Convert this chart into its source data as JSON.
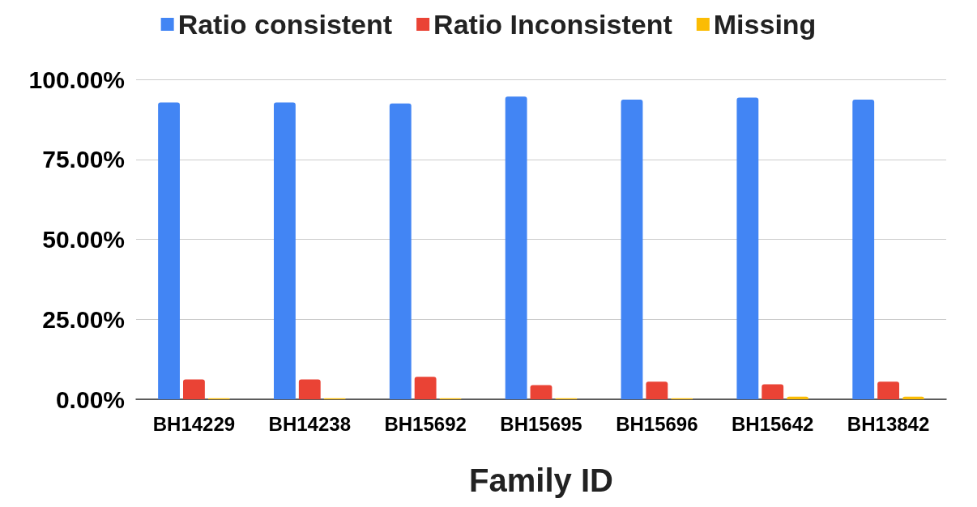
{
  "chart_data": {
    "type": "bar",
    "xlabel": "Family ID",
    "categories": [
      "BH14229",
      "BH14238",
      "BH15692",
      "BH15695",
      "BH15696",
      "BH15642",
      "BH13842"
    ],
    "series": [
      {
        "name": "Ratio consistent",
        "color": "#4285f4",
        "values": [
          92.8,
          92.8,
          92.5,
          94.6,
          93.7,
          94.3,
          93.7
        ]
      },
      {
        "name": "Ratio Inconsistent",
        "color": "#ea4335",
        "values": [
          6.2,
          6.2,
          7.0,
          4.4,
          5.5,
          4.7,
          5.5
        ]
      },
      {
        "name": "Missing",
        "color": "#fbbc04",
        "values": [
          0.3,
          0.3,
          0.3,
          0.3,
          0.3,
          0.8,
          0.8
        ]
      }
    ],
    "ylim": [
      0,
      100
    ],
    "yticks": [
      {
        "value": 0,
        "label": "0.00%"
      },
      {
        "value": 25,
        "label": "25.00%"
      },
      {
        "value": 50,
        "label": "50.00%"
      },
      {
        "value": 75,
        "label": "75.00%"
      },
      {
        "value": 100,
        "label": "100.00%"
      }
    ],
    "grid": "y",
    "legend": "top"
  }
}
